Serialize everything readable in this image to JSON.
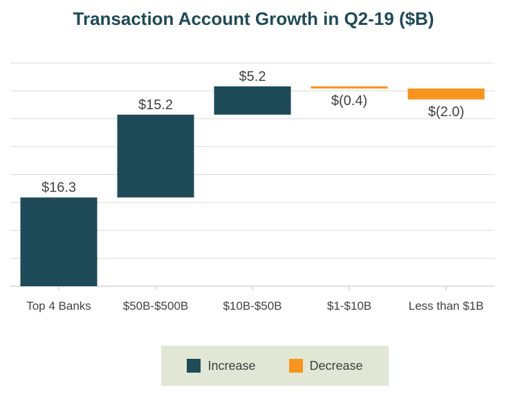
{
  "chart_data": {
    "type": "bar",
    "subtype": "waterfall",
    "title": "Transaction Account Growth in Q2-19 ($B)",
    "categories": [
      "Top 4 Banks",
      "$50B-$500B",
      "$10B-$50B",
      "$1-$10B",
      "Less than $1B"
    ],
    "values": [
      16.3,
      15.2,
      5.2,
      -0.4,
      -2.0
    ],
    "data_labels": [
      "$16.3",
      "$15.2",
      "$5.2",
      "$(0.4)",
      "$(2.0)"
    ],
    "ylim": [
      0,
      41
    ],
    "grid": true,
    "legend": {
      "position": "bottom",
      "items": [
        {
          "label": "Increase",
          "color": "#1f4a57"
        },
        {
          "label": "Decrease",
          "color": "#f7941d"
        }
      ]
    },
    "colors": {
      "increase": "#1f4a57",
      "decrease": "#f7941d"
    }
  }
}
